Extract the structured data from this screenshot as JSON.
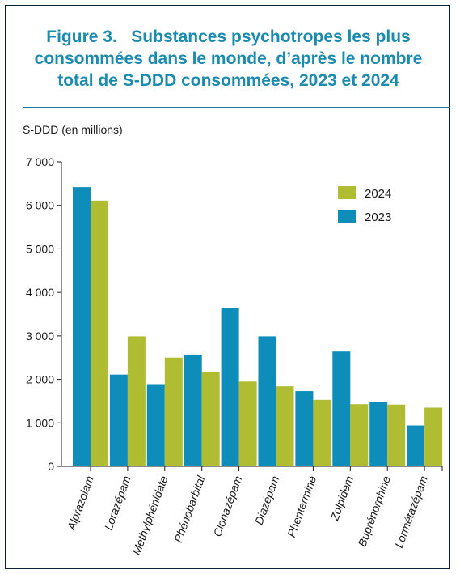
{
  "figure": {
    "title_line1": "Figure 3.   Substances psychotropes les plus",
    "title_line2": "consommées dans le monde, d’après le nombre",
    "title_line3": "total de S-DDD consommées, 2023 et 2024"
  },
  "chart_data": {
    "type": "bar",
    "title": "Figure 3. Substances psychotropes les plus consommées dans le monde, d’après le nombre total de S-DDD consommées, 2023 et 2024",
    "ylabel": "S-DDD (en millions)",
    "xlabel": "",
    "ylim": [
      0,
      7000
    ],
    "yticks": [
      0,
      1000,
      2000,
      3000,
      4000,
      5000,
      6000,
      7000
    ],
    "ytick_labels": [
      "0",
      "1 000",
      "2 000",
      "3 000",
      "4 000",
      "5 000",
      "6 000",
      "7 000"
    ],
    "categories": [
      "Alprazolam",
      "Lorazépam",
      "Méthylphénidate",
      "Phénobarbital",
      "Clonazépam",
      "Diazépam",
      "Phentermine",
      "Zolpidem",
      "Buprénorphine",
      "Lormétazépam"
    ],
    "series": [
      {
        "name": "2023",
        "color": "#0e8cba",
        "values": [
          6420,
          2110,
          1890,
          2570,
          3630,
          2990,
          1730,
          2640,
          1490,
          940
        ]
      },
      {
        "name": "2024",
        "color": "#b0bd32",
        "values": [
          6110,
          2990,
          2500,
          2160,
          1950,
          1840,
          1530,
          1430,
          1420,
          1350
        ]
      }
    ],
    "legend": {
      "placement": "top-right",
      "entries": [
        "2024",
        "2023"
      ]
    },
    "grid": false
  }
}
